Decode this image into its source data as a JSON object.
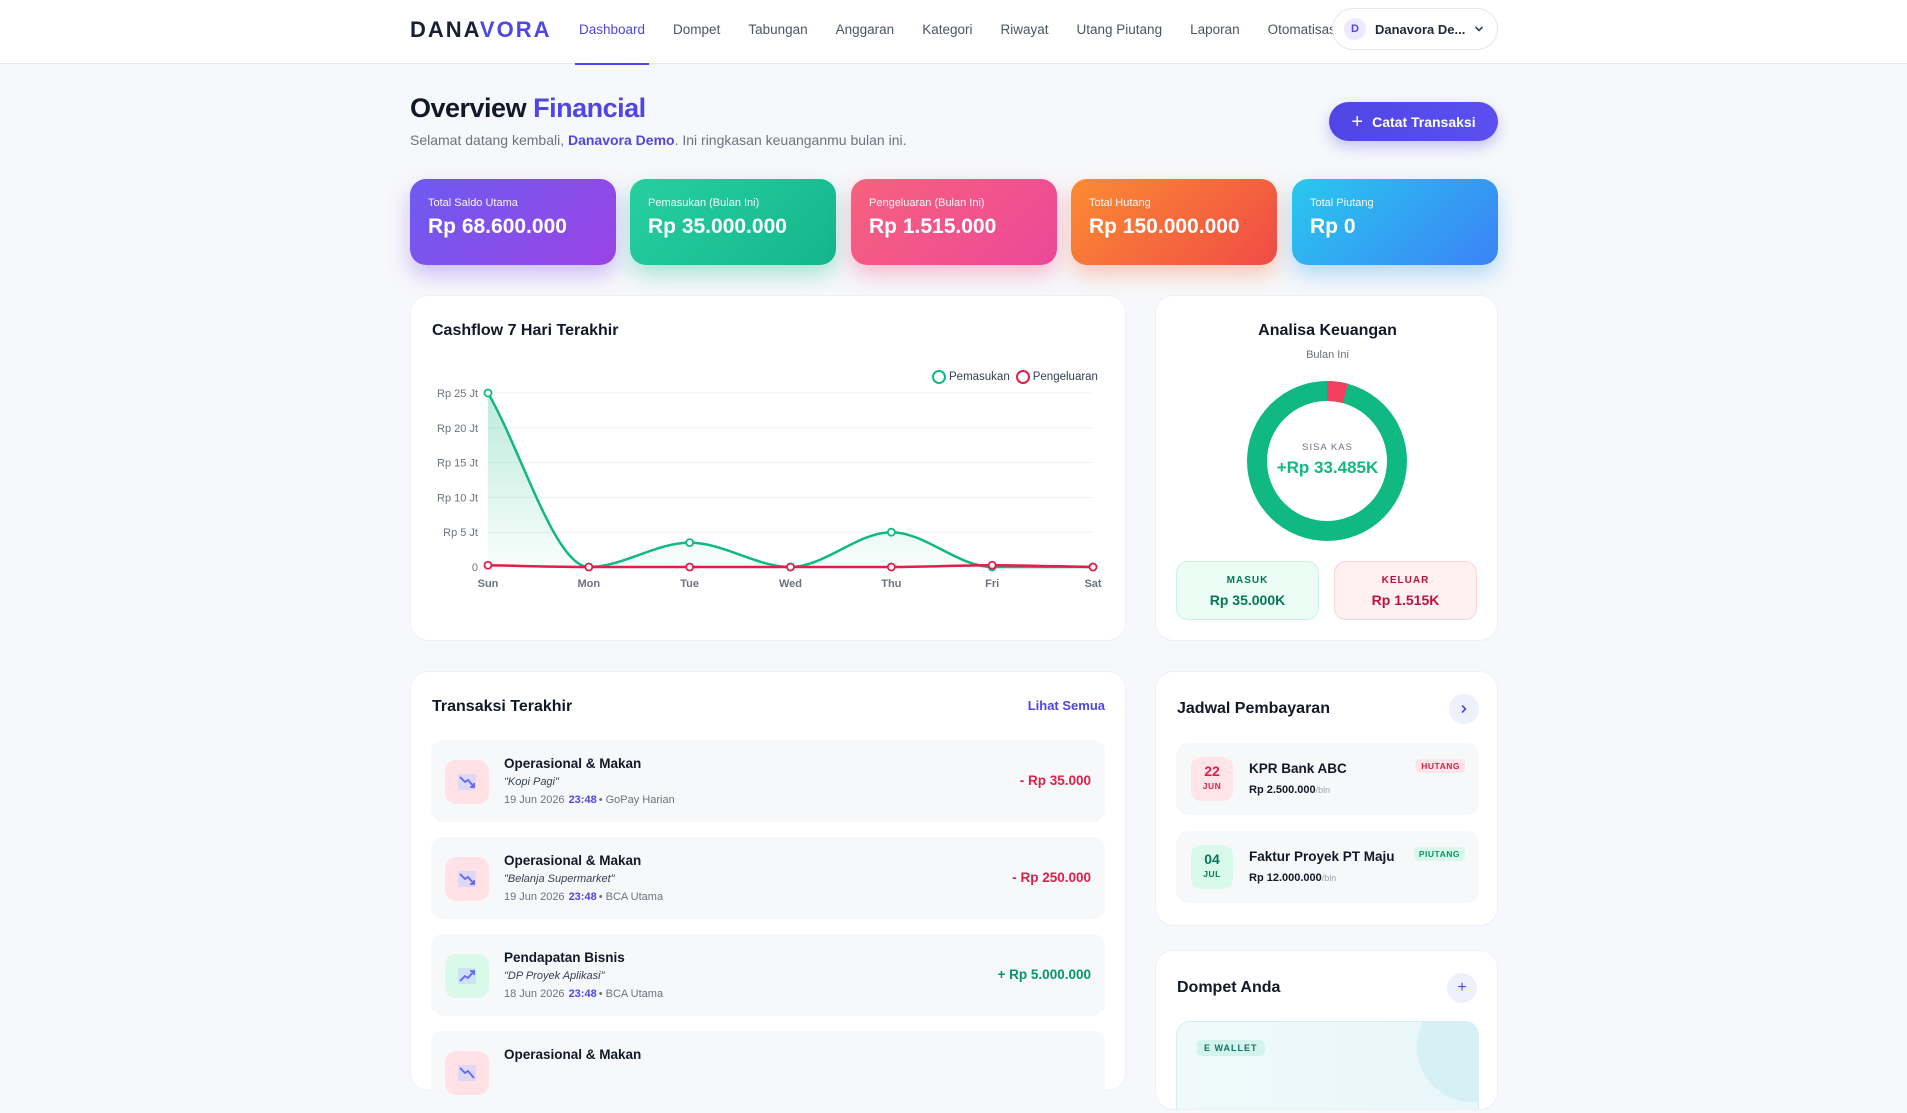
{
  "brand": {
    "part1": "DANA",
    "part2": "VORA"
  },
  "nav": {
    "items": [
      {
        "label": "Dashboard",
        "active": true
      },
      {
        "label": "Dompet"
      },
      {
        "label": "Tabungan"
      },
      {
        "label": "Anggaran"
      },
      {
        "label": "Kategori"
      },
      {
        "label": "Riwayat"
      },
      {
        "label": "Utang Piutang"
      },
      {
        "label": "Laporan"
      },
      {
        "label": "Otomatisasi"
      }
    ],
    "user": {
      "initial": "D",
      "name": "Danavora De..."
    }
  },
  "header": {
    "title_1": "Overview",
    "title_2": "Financial",
    "subtitle_pre": "Selamat datang kembali,",
    "subtitle_name": "Danavora Demo",
    "subtitle_post": ". Ini ringkasan keuanganmu bulan ini.",
    "cta_label": "Catat Transaksi"
  },
  "stats": [
    {
      "label": "Total Saldo Utama",
      "value": "Rp 68.600.000"
    },
    {
      "label": "Pemasukan (Bulan Ini)",
      "value": "Rp 35.000.000"
    },
    {
      "label": "Pengeluaran (Bulan Ini)",
      "value": "Rp 1.515.000"
    },
    {
      "label": "Total Hutang",
      "value": "Rp 150.000.000"
    },
    {
      "label": "Total Piutang",
      "value": "Rp 0"
    }
  ],
  "cashflow": {
    "title": "Cashflow 7 Hari Terakhir",
    "legend": [
      "Pemasukan",
      "Pengeluaran"
    ]
  },
  "chart_data": {
    "type": "line",
    "title": "Cashflow 7 Hari Terakhir",
    "categories": [
      "Sun",
      "Mon",
      "Tue",
      "Wed",
      "Thu",
      "Fri",
      "Sat"
    ],
    "y_ticks": [
      "0",
      "Rp 5 Jt",
      "Rp 10 Jt",
      "Rp 15 Jt",
      "Rp 20 Jt",
      "Rp 25 Jt"
    ],
    "ylim": [
      0,
      25000000
    ],
    "grid": true,
    "legend_position": "top-right",
    "series": [
      {
        "name": "Pemasukan",
        "color": "#10b981",
        "values": [
          25000000,
          0,
          3500000,
          0,
          5000000,
          0,
          0
        ]
      },
      {
        "name": "Pengeluaran",
        "color": "#e11d48",
        "values": [
          250000,
          0,
          0,
          0,
          0,
          250000,
          0
        ]
      }
    ]
  },
  "analisa": {
    "title": "Analisa Keuangan",
    "subtitle": "Bulan Ini",
    "center_label": "SISA KAS",
    "center_value": "+Rp 33.485K",
    "income_fraction": 0.958,
    "expense_fraction": 0.042,
    "masuk_label": "MASUK",
    "masuk_value": "Rp 35.000K",
    "keluar_label": "KELUAR",
    "keluar_value": "Rp 1.515K"
  },
  "transactions": {
    "title": "Transaksi Terakhir",
    "see_all": "Lihat Semua",
    "items": [
      {
        "category": "Operasional & Makan",
        "note": "\"Kopi Pagi\"",
        "date": "19 Jun 2026",
        "time": "23:48",
        "wallet": "• GoPay Harian",
        "amount": "- Rp 35.000",
        "type": "exp"
      },
      {
        "category": "Operasional & Makan",
        "note": "\"Belanja Supermarket\"",
        "date": "19 Jun 2026",
        "time": "23:48",
        "wallet": "• BCA Utama",
        "amount": "- Rp 250.000",
        "type": "exp"
      },
      {
        "category": "Pendapatan Bisnis",
        "note": "\"DP Proyek Aplikasi\"",
        "date": "18 Jun 2026",
        "time": "23:48",
        "wallet": "• BCA Utama",
        "amount": "+ Rp 5.000.000",
        "type": "inc"
      },
      {
        "category": "Operasional & Makan",
        "note": "",
        "date": "",
        "time": "",
        "wallet": "",
        "amount": "",
        "type": "exp"
      }
    ]
  },
  "jadwal": {
    "title": "Jadwal Pembayaran",
    "items": [
      {
        "day": "22",
        "month": "JUN",
        "name": "KPR Bank ABC",
        "amount": "Rp 2.500.000",
        "period": "/bln",
        "badge": "HUTANG",
        "tone": "red"
      },
      {
        "day": "04",
        "month": "JUL",
        "name": "Faktur Proyek PT Maju",
        "amount": "Rp 12.000.000",
        "period": "/bln",
        "badge": "PIUTANG",
        "tone": "green"
      }
    ]
  },
  "dompet": {
    "title": "Dompet Anda",
    "wallet_tag": "E WALLET"
  },
  "colors": {
    "accent": "#4f46e5",
    "income": "#10b981",
    "expense": "#e11d48"
  }
}
